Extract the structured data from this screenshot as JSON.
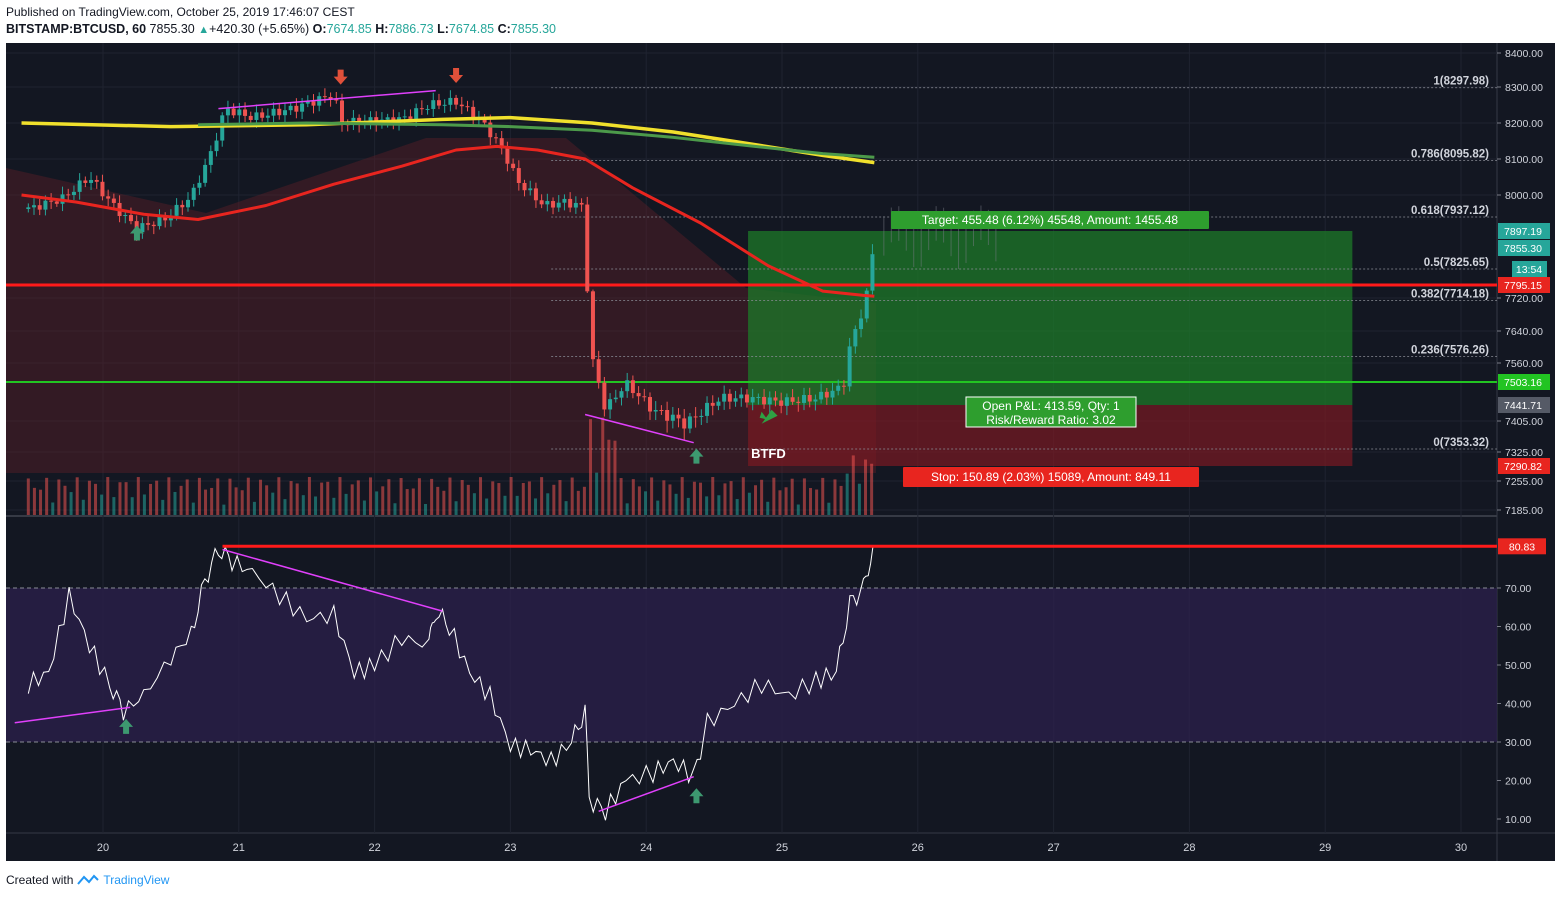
{
  "header": {
    "published": "Published on TradingView.com, October 25, 2019 17:46:07 CEST",
    "symbol": "BITSTAMP:BTCUSD, 60",
    "last": "7855.30",
    "change": "+420.30 (+5.65%)",
    "o_label": "O:",
    "o": "7674.85",
    "h_label": "H:",
    "h": "7886.73",
    "l_label": "L:",
    "l": "7674.85",
    "c_label": "C:",
    "c": "7855.30"
  },
  "footer": {
    "created": "Created with",
    "brand": "TradingView"
  },
  "colors": {
    "bg": "#131722",
    "up": "#26a69a",
    "down": "#ef5350",
    "ma_red": "#e8251f",
    "ma_yellow": "#f0e02c",
    "ma_green": "#4c9a4a",
    "rsi_line": "#ffffff",
    "trend": "#e040fb",
    "resistance": "#ff1a1a",
    "support": "#22c422",
    "target_box": "#1e7a28",
    "stop_box": "#7a1a22"
  },
  "labels": {
    "target": "Target: 455.48 (6.12%) 45548, Amount: 1455.48",
    "stop": "Stop: 150.89 (2.03%) 15089, Amount: 849.11",
    "pnl": "Open P&L: 413.59, Qty: 1",
    "rr": "Risk/Reward Ratio: 3.02",
    "btfd": "BTFD",
    "countdown": "13:54"
  },
  "chart_data": [
    {
      "type": "candlestick",
      "symbol": "BITSTAMP:BTCUSD",
      "interval": "60",
      "y_ticks": [
        "8400.00",
        "8300.00",
        "8200.00",
        "8100.00",
        "8000.00",
        "7720.00",
        "7640.00",
        "7560.00",
        "7405.00",
        "7325.00",
        "7255.00",
        "7185.00"
      ],
      "x_ticks": [
        "20",
        "21",
        "22",
        "23",
        "24",
        "25",
        "26",
        "27",
        "28",
        "29",
        "30"
      ],
      "price_tags": [
        {
          "label": "7897.19",
          "value": 7897.19,
          "color": "#26a69a"
        },
        {
          "label": "7855.30",
          "value": 7855.3,
          "color": "#26a69a"
        },
        {
          "label": "7795.15",
          "value": 7795.15,
          "color": "#e8251f"
        },
        {
          "label": "7503.16",
          "value": 7503.16,
          "color": "#22c422"
        },
        {
          "label": "7441.71",
          "value": 7441.71,
          "color": "#555a66"
        },
        {
          "label": "7290.82",
          "value": 7290.82,
          "color": "#e8251f"
        }
      ],
      "fib_levels": [
        {
          "label": "1(8297.98)",
          "value": 8297.98
        },
        {
          "label": "0.786(8095.82)",
          "value": 8095.82
        },
        {
          "label": "0.618(7937.12)",
          "value": 7937.12
        },
        {
          "label": "0.5(7825.65)",
          "value": 7825.65
        },
        {
          "label": "0.382(7714.18)",
          "value": 7714.18
        },
        {
          "label": "0.236(7576.26)",
          "value": 7576.26
        },
        {
          "label": "0(7353.32)",
          "value": 7353.32
        }
      ],
      "close_series": [
        {
          "day": 19.45,
          "v": 7960
        },
        {
          "day": 19.7,
          "v": 7990
        },
        {
          "day": 19.9,
          "v": 8050
        },
        {
          "day": 20.1,
          "v": 7960
        },
        {
          "day": 20.25,
          "v": 7905
        },
        {
          "day": 20.45,
          "v": 7930
        },
        {
          "day": 20.65,
          "v": 7995
        },
        {
          "day": 20.8,
          "v": 8120
        },
        {
          "day": 20.9,
          "v": 8240
        },
        {
          "day": 21.1,
          "v": 8215
        },
        {
          "day": 21.4,
          "v": 8240
        },
        {
          "day": 21.7,
          "v": 8280
        },
        {
          "day": 21.75,
          "v": 8200
        },
        {
          "day": 21.95,
          "v": 8205
        },
        {
          "day": 22.2,
          "v": 8210
        },
        {
          "day": 22.4,
          "v": 8250
        },
        {
          "day": 22.6,
          "v": 8260
        },
        {
          "day": 22.8,
          "v": 8200
        },
        {
          "day": 22.95,
          "v": 8120
        },
        {
          "day": 23.05,
          "v": 8040
        },
        {
          "day": 23.25,
          "v": 7970
        },
        {
          "day": 23.4,
          "v": 7980
        },
        {
          "day": 23.55,
          "v": 7965
        },
        {
          "day": 23.58,
          "v": 7600
        },
        {
          "day": 23.7,
          "v": 7430
        },
        {
          "day": 23.85,
          "v": 7500
        },
        {
          "day": 24.05,
          "v": 7430
        },
        {
          "day": 24.3,
          "v": 7400
        },
        {
          "day": 24.55,
          "v": 7460
        },
        {
          "day": 24.75,
          "v": 7460
        },
        {
          "day": 25.0,
          "v": 7450
        },
        {
          "day": 25.25,
          "v": 7460
        },
        {
          "day": 25.45,
          "v": 7490
        },
        {
          "day": 25.5,
          "v": 7600
        },
        {
          "day": 25.6,
          "v": 7700
        },
        {
          "day": 25.67,
          "v": 7855.3
        }
      ],
      "rsi": {
        "ticks": [
          "70.00",
          "60.00",
          "50.00",
          "40.00",
          "30.00",
          "20.00",
          "10.00"
        ],
        "last": "80.83",
        "last_value": 80.83,
        "overbought": 70,
        "oversold": 30,
        "series": [
          {
            "day": 19.45,
            "v": 45
          },
          {
            "day": 19.6,
            "v": 48
          },
          {
            "day": 19.75,
            "v": 68
          },
          {
            "day": 19.9,
            "v": 55
          },
          {
            "day": 20.05,
            "v": 45
          },
          {
            "day": 20.15,
            "v": 38
          },
          {
            "day": 20.3,
            "v": 42
          },
          {
            "day": 20.5,
            "v": 52
          },
          {
            "day": 20.65,
            "v": 58
          },
          {
            "day": 20.75,
            "v": 72
          },
          {
            "day": 20.85,
            "v": 80
          },
          {
            "day": 20.95,
            "v": 77
          },
          {
            "day": 21.1,
            "v": 74
          },
          {
            "day": 21.3,
            "v": 68
          },
          {
            "day": 21.5,
            "v": 62
          },
          {
            "day": 21.7,
            "v": 63
          },
          {
            "day": 21.85,
            "v": 48
          },
          {
            "day": 22.0,
            "v": 50
          },
          {
            "day": 22.2,
            "v": 57
          },
          {
            "day": 22.4,
            "v": 55
          },
          {
            "day": 22.45,
            "v": 64
          },
          {
            "day": 22.55,
            "v": 60
          },
          {
            "day": 22.7,
            "v": 48
          },
          {
            "day": 22.85,
            "v": 42
          },
          {
            "day": 23.0,
            "v": 29
          },
          {
            "day": 23.15,
            "v": 28
          },
          {
            "day": 23.3,
            "v": 25
          },
          {
            "day": 23.45,
            "v": 30
          },
          {
            "day": 23.55,
            "v": 38
          },
          {
            "day": 23.58,
            "v": 15
          },
          {
            "day": 23.7,
            "v": 12
          },
          {
            "day": 23.85,
            "v": 20
          },
          {
            "day": 24.05,
            "v": 22
          },
          {
            "day": 24.2,
            "v": 25
          },
          {
            "day": 24.35,
            "v": 21
          },
          {
            "day": 24.45,
            "v": 35
          },
          {
            "day": 24.65,
            "v": 40
          },
          {
            "day": 24.85,
            "v": 45
          },
          {
            "day": 25.05,
            "v": 42
          },
          {
            "day": 25.25,
            "v": 46
          },
          {
            "day": 25.4,
            "v": 48
          },
          {
            "day": 25.5,
            "v": 66
          },
          {
            "day": 25.6,
            "v": 70
          },
          {
            "day": 25.67,
            "v": 80.83
          }
        ]
      }
    }
  ]
}
